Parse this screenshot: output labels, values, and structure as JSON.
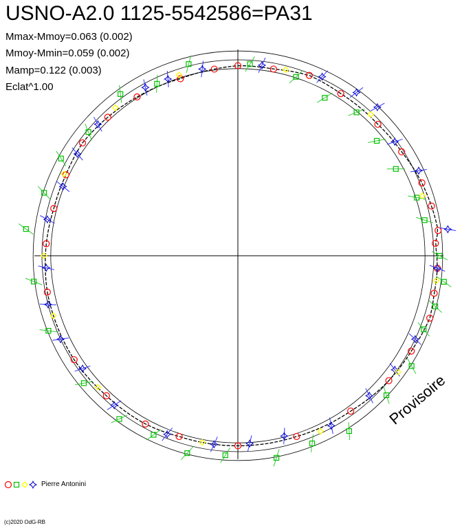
{
  "header": {
    "title": "USNO-A2.0 1125-5542586=PA31",
    "stats": [
      "Mmax-Mmoy=0.063 (0.002)",
      "Mmoy-Mmin=0.059 (0.002)",
      "Mamp=0.122 (0.003)",
      "Eclat^1.00"
    ]
  },
  "watermark": "Provisoire",
  "legend": {
    "observer": "Pierre Antonini",
    "markers": [
      "red-circle",
      "green-square",
      "yellow-diamond",
      "blue-star"
    ]
  },
  "copyright": "(c)2020 OdG-RB",
  "colors": {
    "red": "#ff0000",
    "green": "#00c000",
    "yellow": "#ffff00",
    "blue": "#0000cc",
    "green_bar": "#33cc33",
    "blue_bar": "#3333ff",
    "axes": "#000000"
  },
  "chart_data": {
    "type": "polar-light-curve",
    "reference_circles": [
      "inner",
      "mean",
      "outer"
    ],
    "series": [
      {
        "marker": "red-circle",
        "points": [
          {
            "phase": 0.0,
            "r": 0.97
          },
          {
            "phase": 0.03,
            "r": 0.97
          },
          {
            "phase": 0.06,
            "r": 0.99
          },
          {
            "phase": 0.09,
            "r": 0.98
          },
          {
            "phase": 0.13,
            "r": 0.98
          },
          {
            "phase": 0.16,
            "r": 0.99
          },
          {
            "phase": 0.19,
            "r": 1.01
          },
          {
            "phase": 0.21,
            "r": 1.02
          },
          {
            "phase": 0.23,
            "r": 1.03
          },
          {
            "phase": 0.24,
            "r": 1.01
          },
          {
            "phase": 0.26,
            "r": 1.02
          },
          {
            "phase": 0.28,
            "r": 1.02
          },
          {
            "phase": 0.3,
            "r": 1.03
          },
          {
            "phase": 0.33,
            "r": 1.01
          },
          {
            "phase": 0.36,
            "r": 1.0
          },
          {
            "phase": 0.4,
            "r": 0.98
          },
          {
            "phase": 0.45,
            "r": 0.97
          },
          {
            "phase": 0.5,
            "r": 0.97
          },
          {
            "phase": 0.55,
            "r": 0.97
          },
          {
            "phase": 0.58,
            "r": 0.98
          },
          {
            "phase": 0.62,
            "r": 0.98
          },
          {
            "phase": 0.66,
            "r": 0.99
          },
          {
            "phase": 0.72,
            "r": 0.99
          },
          {
            "phase": 0.76,
            "r": 0.98
          },
          {
            "phase": 0.79,
            "r": 0.97
          },
          {
            "phase": 0.82,
            "r": 0.97
          },
          {
            "phase": 0.85,
            "r": 0.98
          },
          {
            "phase": 0.88,
            "r": 0.97
          },
          {
            "phase": 0.91,
            "r": 0.96
          },
          {
            "phase": 0.95,
            "r": 0.95
          },
          {
            "phase": 0.98,
            "r": 0.96
          }
        ]
      },
      {
        "marker": "green-square",
        "points": [
          {
            "phase": 0.01,
            "r": 0.98
          },
          {
            "phase": 0.05,
            "r": 0.96
          },
          {
            "phase": 0.08,
            "r": 0.92
          },
          {
            "phase": 0.11,
            "r": 0.95
          },
          {
            "phase": 0.14,
            "r": 0.92
          },
          {
            "phase": 0.17,
            "r": 0.92
          },
          {
            "phase": 0.2,
            "r": 0.96
          },
          {
            "phase": 0.22,
            "r": 0.97
          },
          {
            "phase": 0.25,
            "r": 1.03
          },
          {
            "phase": 0.27,
            "r": 1.06
          },
          {
            "phase": 0.29,
            "r": 1.04
          },
          {
            "phase": 0.31,
            "r": 1.02
          },
          {
            "phase": 0.34,
            "r": 1.05
          },
          {
            "phase": 0.37,
            "r": 1.04
          },
          {
            "phase": 0.41,
            "r": 1.06
          },
          {
            "phase": 0.44,
            "r": 1.03
          },
          {
            "phase": 0.47,
            "r": 1.05
          },
          {
            "phase": 0.51,
            "r": 1.02
          },
          {
            "phase": 0.54,
            "r": 1.04
          },
          {
            "phase": 0.57,
            "r": 1.01
          },
          {
            "phase": 0.6,
            "r": 1.03
          },
          {
            "phase": 0.64,
            "r": 1.02
          },
          {
            "phase": 0.69,
            "r": 1.04
          },
          {
            "phase": 0.73,
            "r": 1.05
          },
          {
            "phase": 0.77,
            "r": 1.09
          },
          {
            "phase": 0.8,
            "r": 1.04
          },
          {
            "phase": 0.83,
            "r": 1.03
          },
          {
            "phase": 0.86,
            "r": 0.99
          },
          {
            "phase": 0.9,
            "r": 1.02
          },
          {
            "phase": 0.93,
            "r": 0.97
          },
          {
            "phase": 0.96,
            "r": 1.01
          }
        ]
      },
      {
        "marker": "blue-star",
        "points": [
          {
            "phase": 0.02,
            "r": 0.98
          },
          {
            "phase": 0.07,
            "r": 1.01
          },
          {
            "phase": 0.1,
            "r": 1.03
          },
          {
            "phase": 0.12,
            "r": 1.04
          },
          {
            "phase": 0.15,
            "r": 0.99
          },
          {
            "phase": 0.18,
            "r": 1.02
          },
          {
            "phase": 0.23,
            "r": 1.08
          },
          {
            "phase": 0.26,
            "r": 1.02
          },
          {
            "phase": 0.32,
            "r": 1.0
          },
          {
            "phase": 0.35,
            "r": 0.99
          },
          {
            "phase": 0.38,
            "r": 0.98
          },
          {
            "phase": 0.42,
            "r": 0.99
          },
          {
            "phase": 0.46,
            "r": 0.95
          },
          {
            "phase": 0.49,
            "r": 0.96
          },
          {
            "phase": 0.52,
            "r": 0.97
          },
          {
            "phase": 0.56,
            "r": 0.98
          },
          {
            "phase": 0.61,
            "r": 0.99
          },
          {
            "phase": 0.65,
            "r": 0.98
          },
          {
            "phase": 0.68,
            "r": 1.0
          },
          {
            "phase": 0.71,
            "r": 1.0
          },
          {
            "phase": 0.74,
            "r": 0.98
          },
          {
            "phase": 0.78,
            "r": 0.99
          },
          {
            "phase": 0.81,
            "r": 0.96
          },
          {
            "phase": 0.84,
            "r": 0.97
          },
          {
            "phase": 0.87,
            "r": 0.98
          },
          {
            "phase": 0.92,
            "r": 0.98
          },
          {
            "phase": 0.94,
            "r": 0.97
          },
          {
            "phase": 0.97,
            "r": 0.97
          }
        ]
      },
      {
        "marker": "yellow-diamond",
        "points": [
          {
            "phase": 0.04,
            "r": 0.98
          },
          {
            "phase": 0.12,
            "r": 0.99
          },
          {
            "phase": 0.2,
            "r": 0.99
          },
          {
            "phase": 0.27,
            "r": 1.02
          },
          {
            "phase": 0.35,
            "r": 1.01
          },
          {
            "phase": 0.43,
            "r": 0.99
          },
          {
            "phase": 0.53,
            "r": 0.97
          },
          {
            "phase": 0.63,
            "r": 0.98
          },
          {
            "phase": 0.7,
            "r": 0.99
          },
          {
            "phase": 0.75,
            "r": 0.99
          },
          {
            "phase": 0.82,
            "r": 0.98
          },
          {
            "phase": 0.89,
            "r": 0.98
          },
          {
            "phase": 0.95,
            "r": 0.97
          }
        ]
      }
    ]
  }
}
